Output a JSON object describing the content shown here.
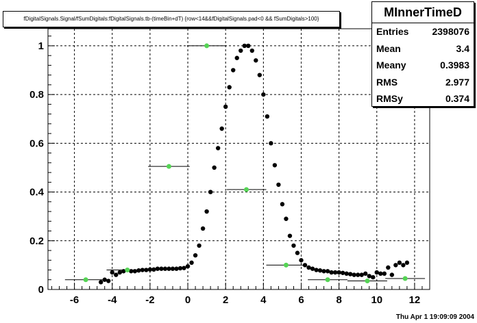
{
  "title": "fDigitalSignals.Signal/fSumDigitals:fDigitalSignals.tb-(timeBin+dT) {row<14&&fDigitalSignals.pad<0 && fSumDigitals>100}",
  "stats": {
    "name": "MInnerTimeD",
    "rows": [
      {
        "label": "Entries",
        "value": "2398076"
      },
      {
        "label": "Mean",
        "value": "3.4"
      },
      {
        "label": "Meany",
        "value": "0.3983"
      },
      {
        "label": "RMS",
        "value": "2.977"
      },
      {
        "label": "RMSy",
        "value": "0.374"
      }
    ]
  },
  "footer": "Thu Apr  1 19:09:09 2004",
  "chart_data": {
    "type": "scatter",
    "xlim": [
      -7.4,
      12.8
    ],
    "ylim": [
      0,
      1.07
    ],
    "x_ticks": [
      "-6",
      "-4",
      "-2",
      "0",
      "2",
      "4",
      "6",
      "8",
      "10",
      "12"
    ],
    "x_tick_values": [
      -6,
      -4,
      -2,
      0,
      2,
      4,
      6,
      8,
      10,
      12
    ],
    "y_ticks": [
      "0",
      "0.2",
      "0.4",
      "0.6",
      "0.8",
      "1"
    ],
    "y_tick_values": [
      0,
      0.2,
      0.4,
      0.6,
      0.8,
      1
    ],
    "grid": true,
    "series": [
      {
        "color": "#000000",
        "x": [
          -4.6,
          -4.4,
          -4.2,
          -4.0,
          -3.8,
          -3.6,
          -3.4,
          -3.2,
          -3.0,
          -2.8,
          -2.6,
          -2.4,
          -2.2,
          -2.0,
          -1.8,
          -1.6,
          -1.4,
          -1.2,
          -1.0,
          -0.8,
          -0.6,
          -0.4,
          -0.2,
          0.0,
          0.2,
          0.4,
          0.6,
          0.8,
          1.0,
          1.2,
          1.4,
          1.6,
          1.8,
          2.0,
          2.2,
          2.4,
          2.6,
          2.8,
          3.0,
          3.2,
          3.4,
          3.6,
          3.8,
          4.0,
          4.2,
          4.4,
          4.6,
          4.8,
          5.0,
          5.2,
          5.4,
          5.6,
          5.8,
          6.0,
          6.2,
          6.4,
          6.6,
          6.8,
          7.0,
          7.2,
          7.4,
          7.6,
          7.8,
          8.0,
          8.2,
          8.4,
          8.6,
          8.8,
          9.0,
          9.2,
          9.4,
          9.6,
          9.8,
          10.0,
          10.2,
          10.4,
          10.6,
          10.8,
          11.0,
          11.2,
          11.4,
          11.6
        ],
        "y": [
          0.03,
          0.04,
          0.035,
          0.07,
          0.06,
          0.07,
          0.075,
          0.08,
          0.075,
          0.075,
          0.078,
          0.08,
          0.08,
          0.082,
          0.082,
          0.085,
          0.085,
          0.085,
          0.085,
          0.085,
          0.085,
          0.087,
          0.088,
          0.095,
          0.11,
          0.14,
          0.18,
          0.25,
          0.32,
          0.4,
          0.5,
          0.58,
          0.66,
          0.75,
          0.83,
          0.9,
          0.95,
          0.98,
          1.0,
          1.0,
          0.98,
          0.94,
          0.88,
          0.8,
          0.71,
          0.6,
          0.51,
          0.43,
          0.35,
          0.29,
          0.22,
          0.18,
          0.15,
          0.12,
          0.1,
          0.09,
          0.085,
          0.08,
          0.078,
          0.075,
          0.075,
          0.07,
          0.07,
          0.07,
          0.068,
          0.065,
          0.063,
          0.06,
          0.06,
          0.06,
          0.065,
          0.055,
          0.05,
          0.07,
          0.065,
          0.065,
          0.09,
          0.06,
          0.1,
          0.11,
          0.1,
          0.11
        ]
      },
      {
        "color": "#55d455",
        "x": [
          -5.4,
          -3.2,
          -1.0,
          1.0,
          3.1,
          5.2,
          7.4,
          9.5,
          11.5
        ],
        "xerr": [
          1.1,
          1.1,
          1.1,
          1.05,
          1.05,
          1.05,
          1.05,
          1.05,
          1.05
        ],
        "y": [
          0.04,
          0.08,
          0.505,
          1.0,
          0.41,
          0.1,
          0.04,
          0.035,
          0.045
        ]
      }
    ]
  }
}
